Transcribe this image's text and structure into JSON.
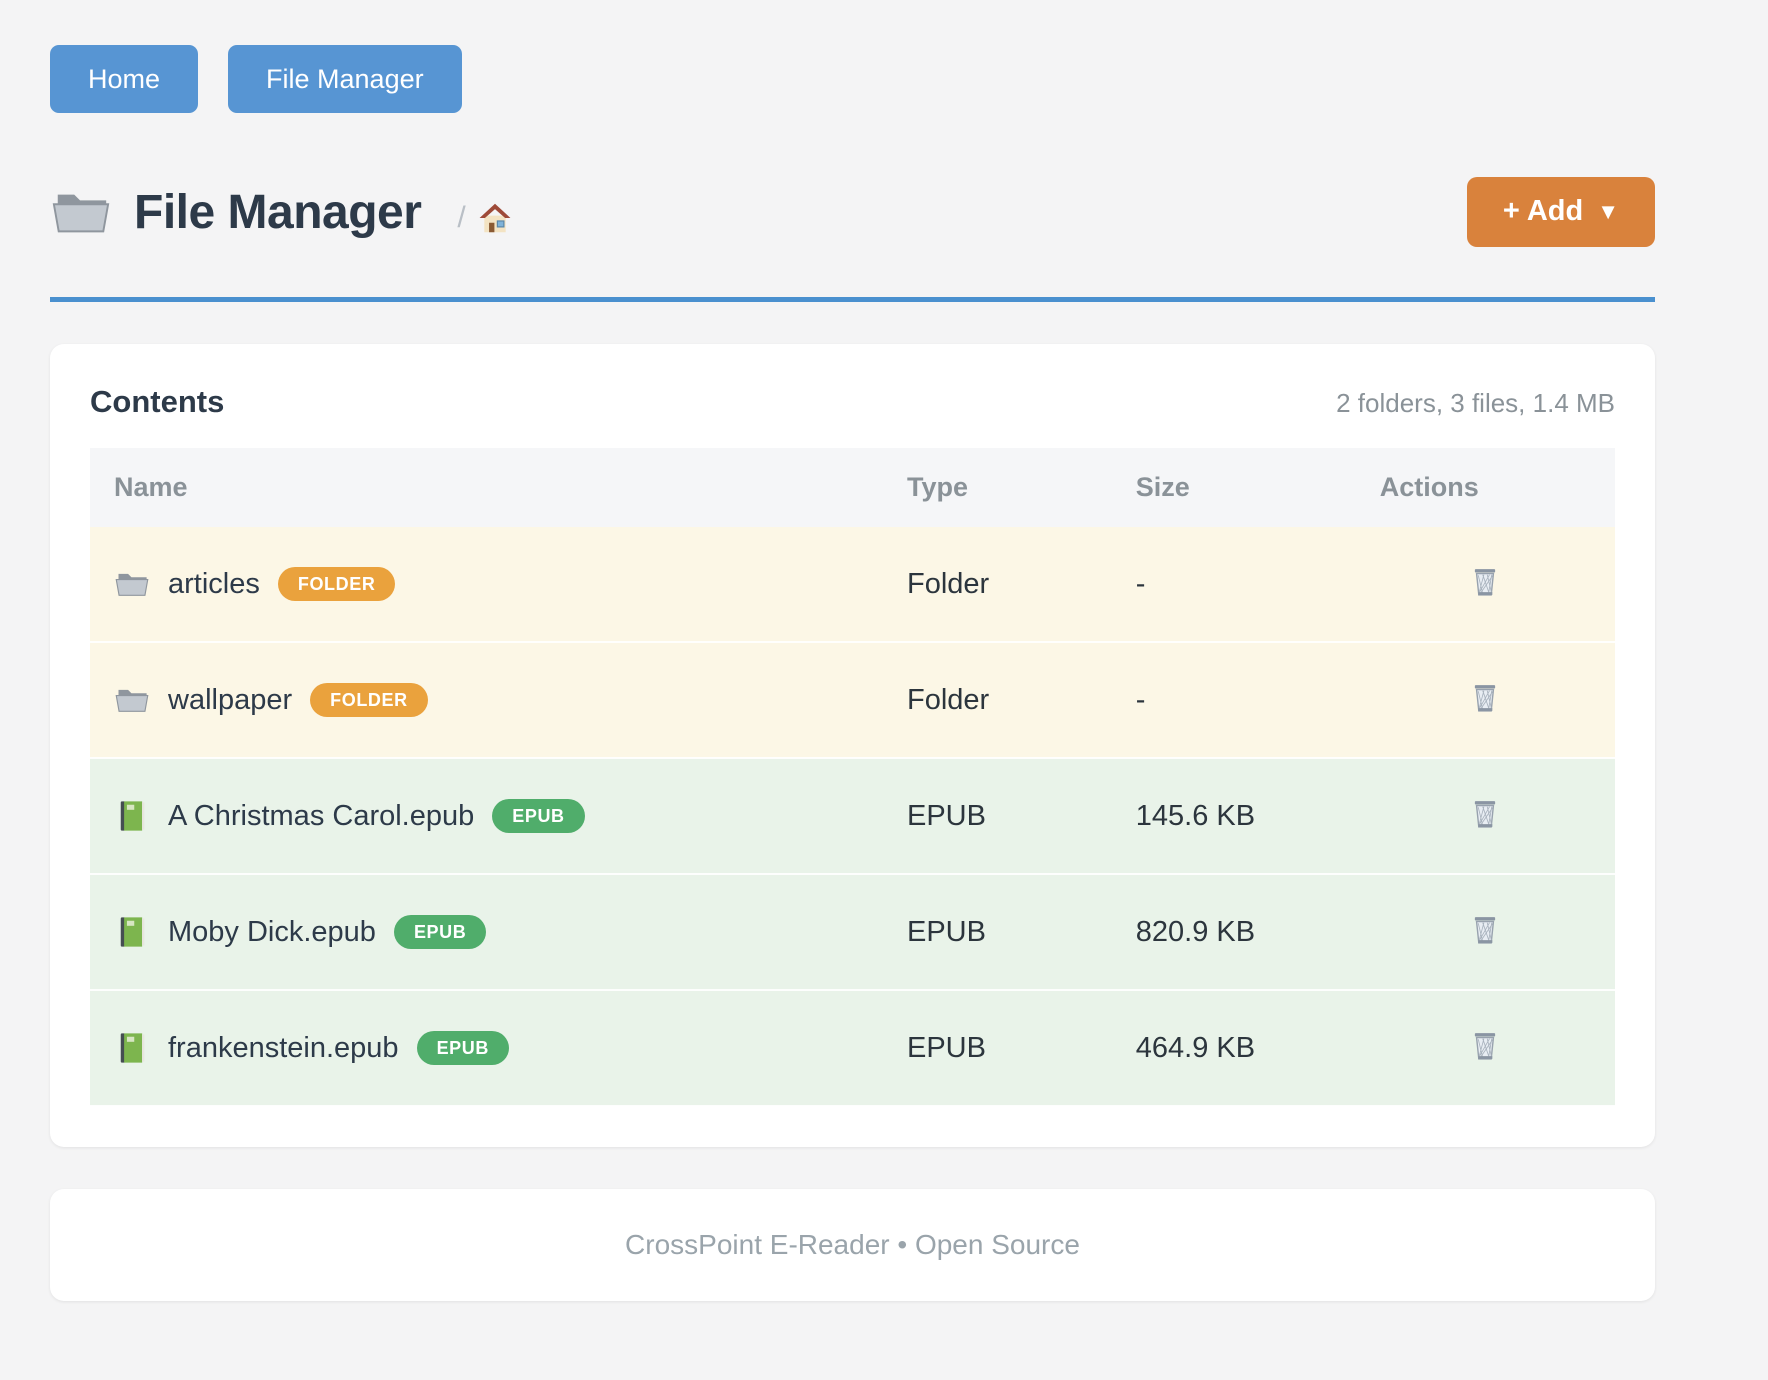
{
  "nav": {
    "items": [
      {
        "label": "Home"
      },
      {
        "label": "File Manager"
      }
    ]
  },
  "header": {
    "icon": "folder-icon",
    "title": "File Manager",
    "breadcrumb_separator": "/",
    "breadcrumb_home_icon": "house-icon",
    "add_button": {
      "label": "+ Add",
      "caret": "▼"
    }
  },
  "contents": {
    "title": "Contents",
    "summary": "2 folders, 3 files, 1.4 MB",
    "table": {
      "columns": [
        "Name",
        "Type",
        "Size",
        "Actions"
      ],
      "rows": [
        {
          "name": "articles",
          "icon": "folder-icon",
          "badge": "FOLDER",
          "kind": "folder",
          "type": "Folder",
          "size": "-",
          "action_icon": "trash-icon"
        },
        {
          "name": "wallpaper",
          "icon": "folder-icon",
          "badge": "FOLDER",
          "kind": "folder",
          "type": "Folder",
          "size": "-",
          "action_icon": "trash-icon"
        },
        {
          "name": "A Christmas Carol.epub",
          "icon": "book-icon",
          "badge": "EPUB",
          "kind": "epub",
          "type": "EPUB",
          "size": "145.6 KB",
          "action_icon": "trash-icon"
        },
        {
          "name": "Moby Dick.epub",
          "icon": "book-icon",
          "badge": "EPUB",
          "kind": "epub",
          "type": "EPUB",
          "size": "820.9 KB",
          "action_icon": "trash-icon"
        },
        {
          "name": "frankenstein.epub",
          "icon": "book-icon",
          "badge": "EPUB",
          "kind": "epub",
          "type": "EPUB",
          "size": "464.9 KB",
          "action_icon": "trash-icon"
        }
      ]
    }
  },
  "footer": {
    "text": "CrossPoint E-Reader • Open Source"
  },
  "colors": {
    "page_bg": "#f4f4f5",
    "nav_button_blue": "#5795d3",
    "divider_blue": "#4a90cf",
    "add_button_orange": "#d9823c",
    "folder_badge": "#eaa23d",
    "epub_badge": "#50ad6b",
    "folder_row_bg": "#fcf7e6",
    "epub_row_bg": "#e9f3e9"
  }
}
